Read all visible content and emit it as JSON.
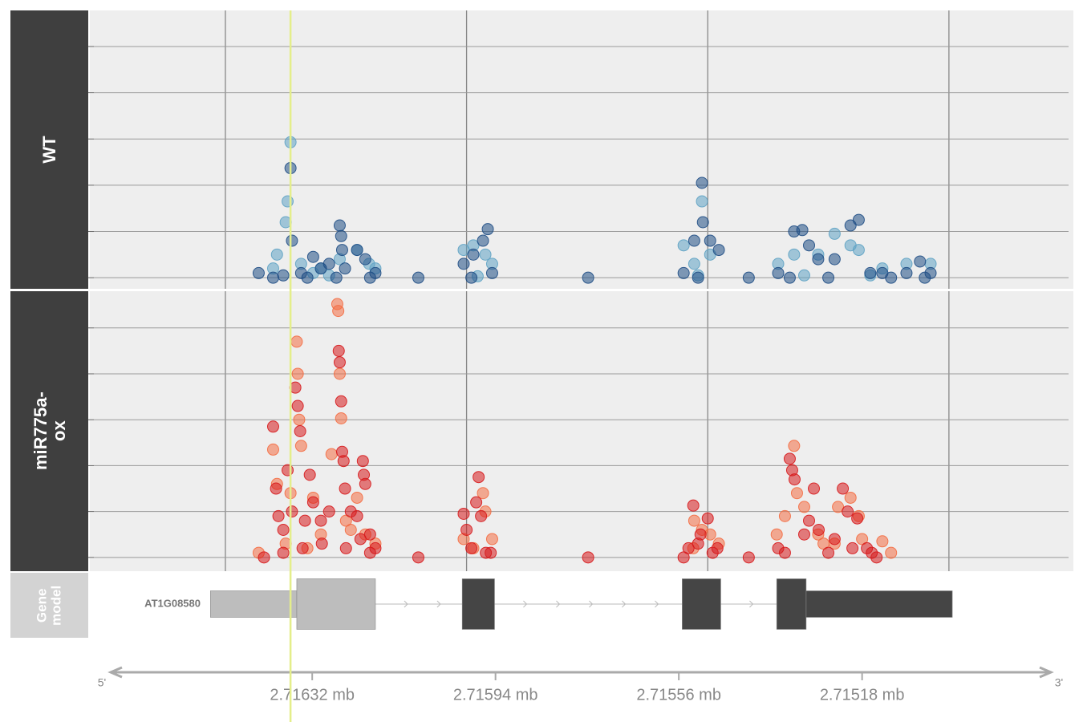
{
  "chart_data": [
    {
      "type": "scatter",
      "title": "WT",
      "xlim": [
        2716781,
        2714742
      ],
      "ylim": [
        -2.4,
        57.8
      ],
      "yticks": [
        0,
        10,
        20,
        30,
        40,
        50
      ],
      "xgrid": [
        2716500,
        2716000,
        2715500,
        2715000
      ],
      "grid": true,
      "series": [
        {
          "color": "#5fa3c4",
          "x": [
            2716401,
            2716393,
            2716375,
            2716371,
            2716365,
            2716343,
            2716302,
            2716263,
            2716227,
            2716202,
            2716189,
            2716006,
            2715986,
            2715961,
            2715947,
            2715550,
            2715528,
            2715512,
            2715495,
            2715354,
            2715321,
            2715271,
            2715237,
            2715204,
            2715187,
            2715138,
            2715088,
            2715038,
            2716318,
            2716285,
            2715977,
            2715520,
            2715300,
            2715163
          ],
          "values": [
            2,
            5,
            12,
            16.5,
            29.3,
            3,
            2,
            4,
            6,
            3,
            2,
            6,
            7,
            5,
            3,
            7,
            3,
            16.5,
            5,
            3,
            5,
            5,
            9.5,
            7,
            6,
            2,
            3,
            3,
            1,
            0.5,
            0.3,
            0.5,
            0.5,
            0.5
          ]
        },
        {
          "color": "#1f4e85",
          "x": [
            2716431,
            2716401,
            2716380,
            2716365,
            2716362,
            2716343,
            2716318,
            2716302,
            2716285,
            2716263,
            2716260,
            2716258,
            2716252,
            2716227,
            2716210,
            2716189,
            2716100,
            2716006,
            2715986,
            2715966,
            2715956,
            2715947,
            2715748,
            2715550,
            2715528,
            2715512,
            2715510,
            2715495,
            2715477,
            2715415,
            2715354,
            2715321,
            2715304,
            2715290,
            2715271,
            2715237,
            2715204,
            2715187,
            2715163,
            2715138,
            2715088,
            2715060,
            2715038,
            2716330,
            2716270,
            2716200,
            2715990,
            2715520,
            2715330,
            2715250,
            2715120,
            2715050
          ],
          "values": [
            1,
            0,
            0.5,
            23.7,
            8,
            1,
            4.5,
            2,
            3,
            11.3,
            9,
            6,
            2,
            6,
            4,
            1,
            0,
            3,
            5,
            8,
            10.5,
            1,
            0,
            1,
            8,
            20.5,
            12,
            8,
            6,
            0,
            1,
            10,
            10.3,
            7,
            4,
            4,
            11.3,
            12.5,
            1,
            1,
            1,
            3.5,
            1,
            0,
            0,
            0,
            0,
            0,
            0,
            0,
            0,
            0
          ]
        }
      ]
    },
    {
      "type": "scatter",
      "title": "miR775a-ox",
      "xlim": [
        2716781,
        2714742
      ],
      "ylim": [
        -3,
        58
      ],
      "yticks": [
        0,
        10,
        20,
        30,
        40,
        50
      ],
      "xgrid": [
        2716500,
        2716000,
        2715500,
        2715000
      ],
      "grid": true,
      "series": [
        {
          "color": "#f46d43",
          "x": [
            2716431,
            2716401,
            2716393,
            2716375,
            2716365,
            2716352,
            2716350,
            2716347,
            2716343,
            2716318,
            2716302,
            2716280,
            2716268,
            2716266,
            2716263,
            2716260,
            2716250,
            2716227,
            2716210,
            2716189,
            2716006,
            2715986,
            2715966,
            2715961,
            2715947,
            2715528,
            2715512,
            2715495,
            2715477,
            2715357,
            2715340,
            2715321,
            2715315,
            2715300,
            2715271,
            2715237,
            2715230,
            2715204,
            2715187,
            2715138,
            2715120,
            2716330,
            2716240,
            2715530,
            2715260,
            2715180
          ],
          "values": [
            1,
            23.5,
            16,
            3,
            14,
            47,
            40,
            30,
            24.3,
            13,
            5,
            22.5,
            55.2,
            53.7,
            40,
            30.3,
            8,
            13,
            5,
            3,
            4,
            2,
            14,
            10,
            4,
            8,
            6,
            5,
            3,
            5,
            9,
            24.3,
            14,
            11,
            5,
            3,
            11,
            13,
            9,
            3.5,
            1,
            2,
            6,
            2,
            3,
            4
          ]
        },
        {
          "color": "#d7191c",
          "x": [
            2716401,
            2716395,
            2716390,
            2716380,
            2716371,
            2716362,
            2716355,
            2716350,
            2716345,
            2716335,
            2716325,
            2716318,
            2716302,
            2716285,
            2716265,
            2716263,
            2716260,
            2716258,
            2716255,
            2716252,
            2716240,
            2716227,
            2716215,
            2716213,
            2716210,
            2716200,
            2716189,
            2716100,
            2716006,
            2716000,
            2715980,
            2715975,
            2715970,
            2715950,
            2715748,
            2715550,
            2715540,
            2715530,
            2715515,
            2715500,
            2715480,
            2715415,
            2715354,
            2715330,
            2715325,
            2715320,
            2715300,
            2715290,
            2715280,
            2715270,
            2715237,
            2715220,
            2715210,
            2715190,
            2715170,
            2715160,
            2716420,
            2716380,
            2716340,
            2716300,
            2716250,
            2716220,
            2716200,
            2715990,
            2715960,
            2715520,
            2715490,
            2715340,
            2715250,
            2715200,
            2715150
          ],
          "values": [
            28.5,
            15,
            9,
            6,
            19,
            10,
            37,
            33,
            27.5,
            8,
            18,
            12,
            8,
            10,
            45,
            42.5,
            34,
            23,
            21,
            15,
            10,
            9,
            21,
            18,
            16,
            5,
            2,
            0,
            9.5,
            6,
            12,
            17.5,
            9,
            1,
            0,
            0,
            2,
            11.3,
            5,
            8.5,
            2,
            0,
            2,
            21.5,
            19,
            17,
            5,
            8,
            15,
            6,
            4,
            15,
            10,
            8.5,
            2,
            1,
            0,
            1,
            2,
            3,
            2,
            4,
            1,
            2,
            1,
            3,
            1,
            1,
            1,
            2,
            0
          ]
        }
      ]
    },
    {
      "type": "gene-model",
      "title": "Gene model",
      "gene": "AT1G08580",
      "xlim": [
        2716781,
        2714742
      ],
      "features": [
        {
          "start": 2716531,
          "end": 2716352,
          "color": "#bdbdbd",
          "tall": false
        },
        {
          "start": 2716352,
          "end": 2716189,
          "color": "#bdbdbd",
          "tall": true
        },
        {
          "start": 2716009,
          "end": 2715942,
          "color": "#454545",
          "tall": true
        },
        {
          "start": 2715553,
          "end": 2715473,
          "color": "#454545",
          "tall": true
        },
        {
          "start": 2715357,
          "end": 2715296,
          "color": "#454545",
          "tall": true
        },
        {
          "start": 2715296,
          "end": 2714993,
          "color": "#454545",
          "tall": false
        }
      ]
    },
    {
      "type": "genome-axis",
      "xlim": [
        2716781,
        2714742
      ],
      "ends": [
        "5'",
        "3'"
      ],
      "xticks": [
        {
          "value": 2716320,
          "label": "2.71632 mb"
        },
        {
          "value": 2715940,
          "label": "2.71594 mb"
        },
        {
          "value": 2715560,
          "label": "2.71556 mb"
        },
        {
          "value": 2715180,
          "label": "2.71518 mb"
        }
      ],
      "highlight": {
        "x": 2716365,
        "color": "#e4ee8a"
      }
    }
  ]
}
